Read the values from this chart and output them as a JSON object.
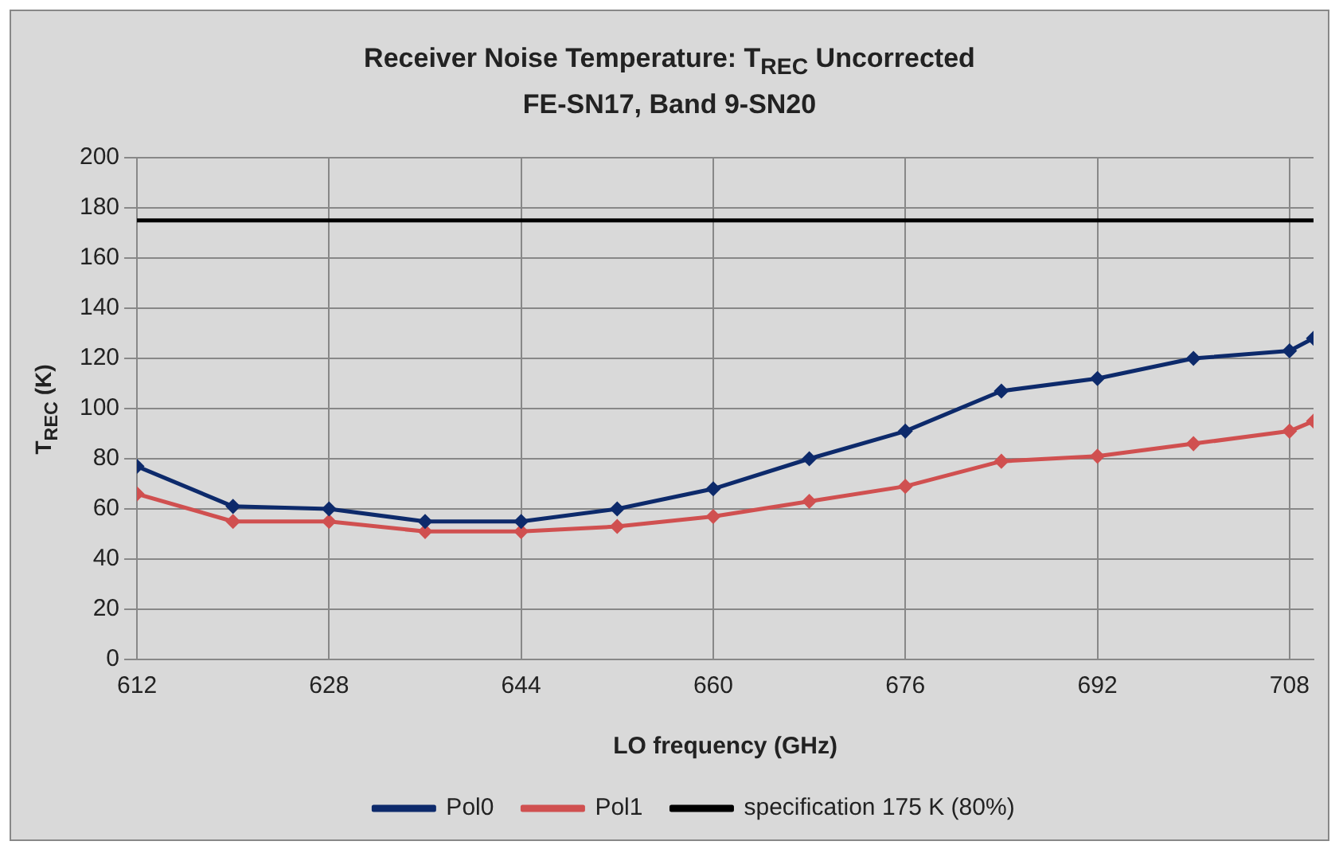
{
  "chart_data": {
    "type": "line",
    "title": "Receiver Noise Temperature: T$_{REC}$ Uncorrected",
    "subtitle": "FE-SN17, Band 9-SN20",
    "xlabel": "LO frequency (GHz)",
    "ylabel": "T$_{REC}$ (K)",
    "x": [
      612,
      620,
      628,
      636,
      644,
      652,
      660,
      668,
      676,
      684,
      692,
      700,
      708,
      710
    ],
    "series": [
      {
        "name": "Pol0",
        "color": "#0d2a6b",
        "values": [
          77,
          61,
          60,
          55,
          55,
          60,
          68,
          80,
          91,
          107,
          112,
          120,
          123,
          128
        ]
      },
      {
        "name": "Pol1",
        "color": "#d05050",
        "values": [
          66,
          55,
          55,
          51,
          51,
          53,
          57,
          63,
          69,
          79,
          81,
          86,
          91,
          95
        ]
      },
      {
        "name": "specification 175 K (80%)",
        "color": "#000000",
        "x": [
          612,
          710
        ],
        "values": [
          175,
          175
        ],
        "marker": "none"
      }
    ],
    "xlim": [
      612,
      710
    ],
    "xticks": [
      612,
      628,
      644,
      660,
      676,
      692,
      708
    ],
    "ylim": [
      0,
      200
    ],
    "yticks": [
      0,
      20,
      40,
      60,
      80,
      100,
      120,
      140,
      160,
      180,
      200
    ],
    "grid": true,
    "legend": "bottom",
    "marker": "diamond",
    "line_style": "solid"
  }
}
